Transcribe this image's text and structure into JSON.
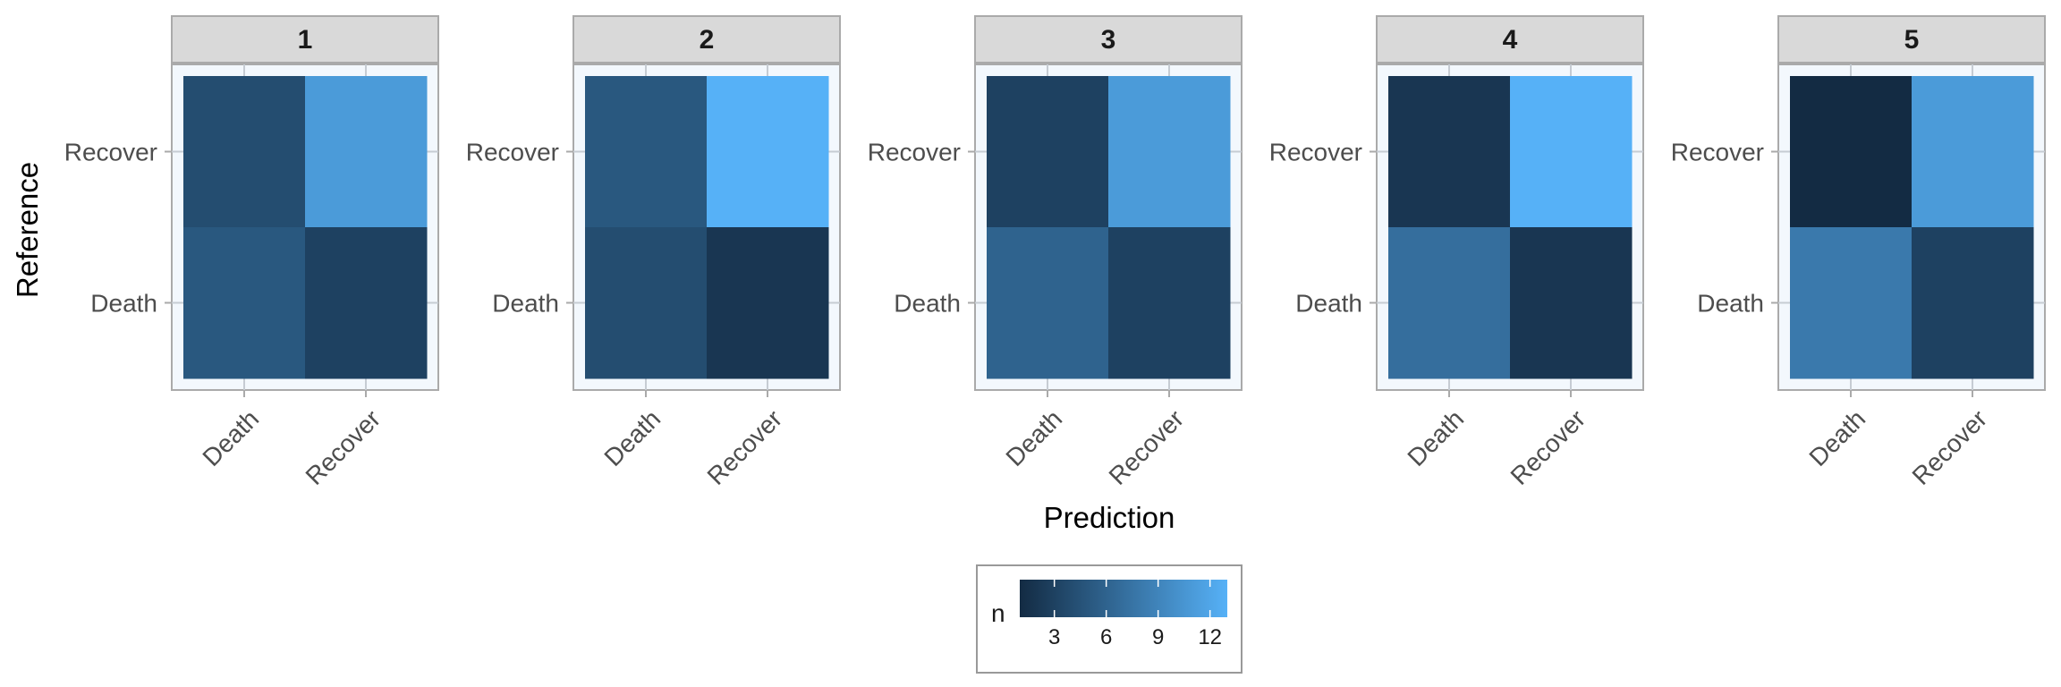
{
  "chart_data": {
    "type": "heatmap",
    "xlabel": "Prediction",
    "ylabel": "Reference",
    "x_categories": [
      "Death",
      "Recover"
    ],
    "y_categories": [
      "Death",
      "Recover"
    ],
    "facets": [
      {
        "label": "1",
        "cells": [
          {
            "reference": "Recover",
            "prediction": "Death",
            "n": 4
          },
          {
            "reference": "Recover",
            "prediction": "Recover",
            "n": 11
          },
          {
            "reference": "Death",
            "prediction": "Death",
            "n": 5
          },
          {
            "reference": "Death",
            "prediction": "Recover",
            "n": 3
          }
        ]
      },
      {
        "label": "2",
        "cells": [
          {
            "reference": "Recover",
            "prediction": "Death",
            "n": 5
          },
          {
            "reference": "Recover",
            "prediction": "Recover",
            "n": 13
          },
          {
            "reference": "Death",
            "prediction": "Death",
            "n": 4
          },
          {
            "reference": "Death",
            "prediction": "Recover",
            "n": 2
          }
        ]
      },
      {
        "label": "3",
        "cells": [
          {
            "reference": "Recover",
            "prediction": "Death",
            "n": 3
          },
          {
            "reference": "Recover",
            "prediction": "Recover",
            "n": 11
          },
          {
            "reference": "Death",
            "prediction": "Death",
            "n": 6
          },
          {
            "reference": "Death",
            "prediction": "Recover",
            "n": 3
          }
        ]
      },
      {
        "label": "4",
        "cells": [
          {
            "reference": "Recover",
            "prediction": "Death",
            "n": 2
          },
          {
            "reference": "Recover",
            "prediction": "Recover",
            "n": 13
          },
          {
            "reference": "Death",
            "prediction": "Death",
            "n": 7
          },
          {
            "reference": "Death",
            "prediction": "Recover",
            "n": 2
          }
        ]
      },
      {
        "label": "5",
        "cells": [
          {
            "reference": "Recover",
            "prediction": "Death",
            "n": 1
          },
          {
            "reference": "Recover",
            "prediction": "Recover",
            "n": 11
          },
          {
            "reference": "Death",
            "prediction": "Death",
            "n": 8
          },
          {
            "reference": "Death",
            "prediction": "Recover",
            "n": 3
          }
        ]
      }
    ],
    "legend": {
      "title": "n",
      "breaks": [
        3,
        6,
        9,
        12
      ],
      "range": [
        1,
        13
      ],
      "low_color": "#132B43",
      "high_color": "#56B1F7",
      "placement": "bottom"
    }
  }
}
